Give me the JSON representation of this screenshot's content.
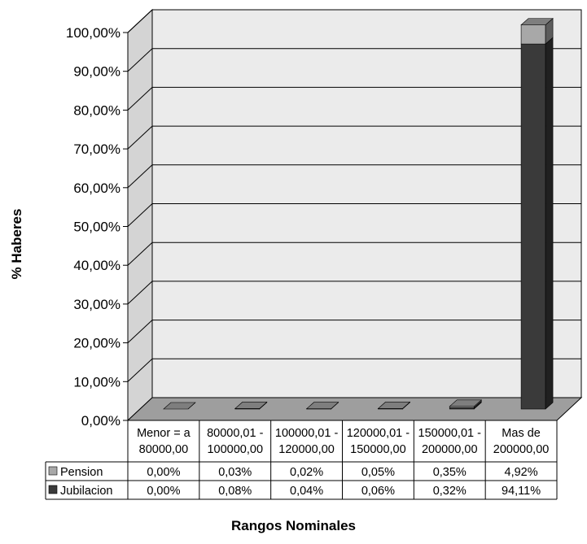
{
  "chart_data": {
    "type": "bar",
    "stacked": true,
    "three_d": true,
    "categories": [
      [
        "Menor = a",
        "80000,00"
      ],
      [
        "80000,01 -",
        "100000,00"
      ],
      [
        "100000,01 -",
        "120000,00"
      ],
      [
        "120000,01 -",
        "150000,00"
      ],
      [
        "150000,01 -",
        "200000,00"
      ],
      [
        "Mas de",
        "200000,00"
      ]
    ],
    "series": [
      {
        "name": "Pension",
        "color": "#a8a8a8",
        "values": [
          0.0,
          0.03,
          0.02,
          0.05,
          0.35,
          4.92
        ],
        "labels": [
          "0,00%",
          "0,03%",
          "0,02%",
          "0,05%",
          "0,35%",
          "4,92%"
        ]
      },
      {
        "name": "Jubilacion",
        "color": "#3a3a3a",
        "values": [
          0.0,
          0.08,
          0.04,
          0.06,
          0.32,
          94.11
        ],
        "labels": [
          "0,00%",
          "0,08%",
          "0,04%",
          "0,06%",
          "0,32%",
          "94,11%"
        ]
      }
    ],
    "ylabel": "% Haberes",
    "xlabel": "Rangos Nominales",
    "ylim": [
      0,
      100
    ],
    "yticks": [
      "0,00%",
      "10,00%",
      "20,00%",
      "30,00%",
      "40,00%",
      "50,00%",
      "60,00%",
      "70,00%",
      "80,00%",
      "90,00%",
      "100,00%"
    ],
    "grid": true,
    "legend": "data-table-left"
  }
}
